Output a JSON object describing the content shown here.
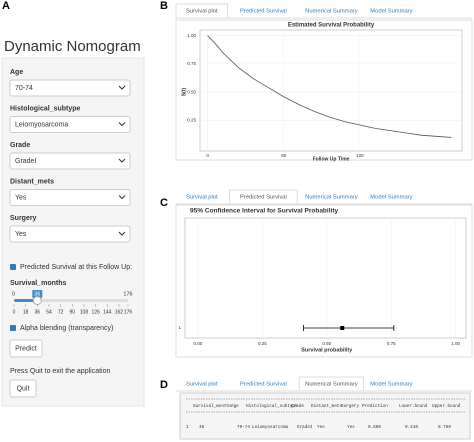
{
  "panel_labels": [
    "A",
    "B",
    "C",
    "D"
  ],
  "sidebar": {
    "title": "Dynamic Nomogram",
    "inputs": [
      {
        "label": "Age",
        "value": "70-74"
      },
      {
        "label": "Histological_subtype",
        "value": "Leiomyosarcoma"
      },
      {
        "label": "Grade",
        "value": "GradeI"
      },
      {
        "label": "Distant_mets",
        "value": "Yes"
      },
      {
        "label": "Surgery",
        "value": "Yes"
      }
    ],
    "checkbox_survival": "Predicted Survival at this Follow Up:",
    "slider": {
      "label": "Survival_months",
      "min": 0,
      "max": 176,
      "value": 36,
      "ticks": [
        0,
        18,
        36,
        54,
        72,
        90,
        108,
        126,
        144,
        162,
        176
      ]
    },
    "checkbox_alpha": "Alpha blending (transparency)",
    "predict_button": "Predict",
    "quit_note": "Press Quit to exit the application",
    "quit_button": "Quit"
  },
  "panel_b": {
    "tabs": [
      "Survival plot",
      "Predicted Survival",
      "Numerical Summary",
      "Model Summary"
    ],
    "active_tab": 0,
    "title": "Estimated Survival Probability",
    "ylabel": "S(t)",
    "xlabel": "Follow Up Time",
    "x": [
      0,
      5,
      10,
      20,
      30,
      40,
      50,
      60,
      70,
      80,
      90,
      100,
      110,
      120,
      130,
      140,
      150,
      160
    ],
    "values": [
      1.0,
      0.93,
      0.85,
      0.72,
      0.62,
      0.54,
      0.46,
      0.39,
      0.33,
      0.28,
      0.24,
      0.21,
      0.18,
      0.16,
      0.14,
      0.12,
      0.11,
      0.1
    ],
    "xlim": [
      -5,
      167
    ],
    "ylim": [
      -0.02,
      1.05
    ],
    "xticks": [
      0,
      50,
      100
    ],
    "yticks": [
      {
        "value": 0.25,
        "label": "0.25"
      },
      {
        "value": 0.5,
        "label": "0.50"
      },
      {
        "value": 0.75,
        "label": "0.75"
      },
      {
        "value": 1,
        "label": "1.00"
      }
    ]
  },
  "panel_c": {
    "tabs": [
      "Survival plot",
      "Predicted Survival",
      "Numerical Summary",
      "Model Summary"
    ],
    "active_tab": 1,
    "title": "95% Confidence Interval for Survival Probability",
    "xlabel": "Survival probability",
    "category": "1",
    "estimate": 0.56,
    "lower": 0.41,
    "upper": 0.76,
    "xlim": [
      -0.05,
      1.04
    ],
    "xticks": [
      {
        "value": 0,
        "label": "0.00"
      },
      {
        "value": 0.25,
        "label": "0.25"
      },
      {
        "value": 0.5,
        "label": "0.50"
      },
      {
        "value": 0.75,
        "label": "0.75"
      },
      {
        "value": 1,
        "label": "1.00"
      }
    ]
  },
  "panel_d": {
    "tabs": [
      "Survival plot",
      "Predicted Survival",
      "Numerical Summary",
      "Model Summary"
    ],
    "active_tab": 2,
    "columns": [
      "Survival_months",
      "Age",
      "Histological_subtype",
      "Grade",
      "Distant_mets",
      "Surgery",
      "Prediction",
      "Lower.bound",
      "Upper.bound"
    ],
    "row_index": "1",
    "row": [
      "36",
      "70-74",
      "Leiomyosarcoma",
      "GradeI",
      "Yes",
      "Yes",
      "0.560",
      "0.410",
      "0.760"
    ]
  }
}
